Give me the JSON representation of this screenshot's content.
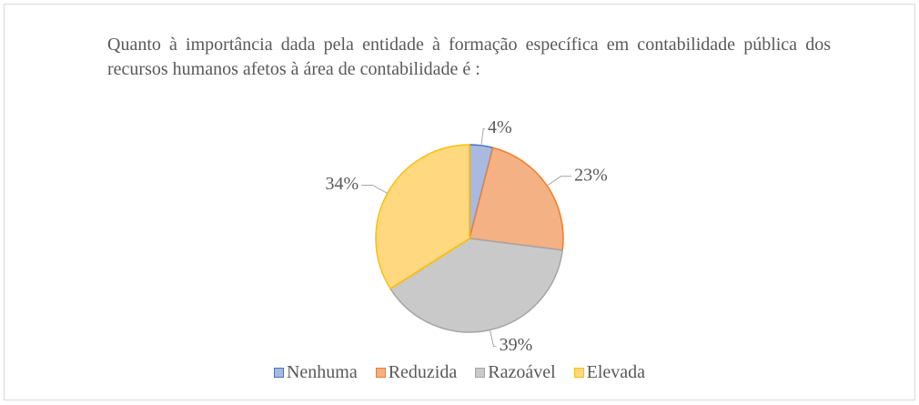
{
  "chart_data": {
    "type": "pie",
    "title": "Quanto à importância dada pela entidade à formação específica em contabilidade pública dos recursos humanos afetos à área de contabilidade é :",
    "categories": [
      "Nenhuma",
      "Reduzida",
      "Razoável",
      "Elevada"
    ],
    "values": [
      4,
      23,
      39,
      34
    ],
    "value_labels": [
      "4%",
      "23%",
      "39%",
      "34%"
    ],
    "colors": [
      "#a9b9e0",
      "#f4b183",
      "#c9c9c9",
      "#ffd880"
    ],
    "edge_colors": [
      "#4472c4",
      "#ed7d31",
      "#a5a5a5",
      "#ffc000"
    ],
    "legend": "bottom"
  }
}
